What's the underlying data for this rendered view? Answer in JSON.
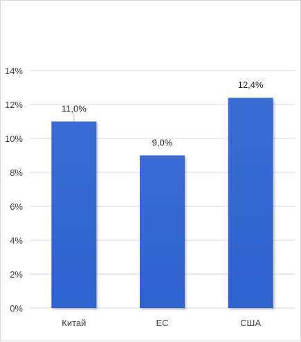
{
  "chart_data": {
    "type": "bar",
    "title": "",
    "xlabel": "",
    "ylabel": "",
    "categories": [
      "Китай",
      "ЕС",
      "США"
    ],
    "values": [
      11.0,
      9.0,
      12.4
    ],
    "data_labels": [
      "11,0%",
      "9,0%",
      "12,4%"
    ],
    "ylim": [
      0,
      14
    ],
    "y_ticks": [
      0,
      2,
      4,
      6,
      8,
      10,
      12,
      14
    ],
    "y_tick_labels": [
      "0%",
      "2%",
      "4%",
      "6%",
      "8%",
      "10%",
      "12%",
      "14%"
    ],
    "grid": true,
    "legend": false,
    "bar_color": "#2e62cf",
    "gridline_color": "#d9d9d9"
  }
}
